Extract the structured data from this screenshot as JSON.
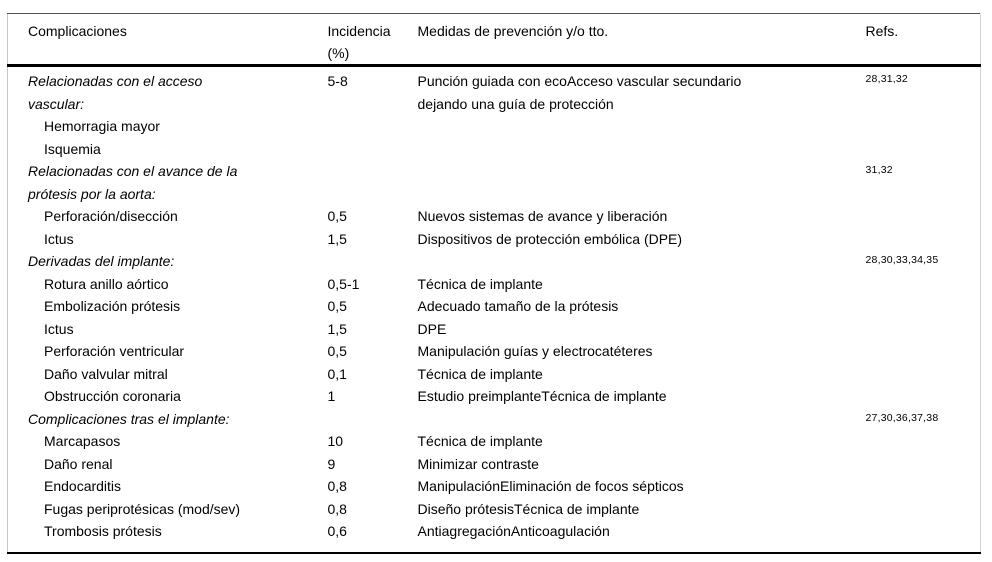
{
  "table": {
    "headers": [
      "Complicaciones",
      "Incidencia\n(%)",
      "Medidas de prevención y/o tto.",
      "Refs."
    ],
    "rows": [
      {
        "complication": "Relacionadas con el acceso\nvascular:",
        "section": true,
        "indent": false,
        "incidence_pct": "5-8",
        "measures": "Punción guiada con ecoAcceso vascular secundario\ndejando una guía de protección",
        "refs": "28,31,32"
      },
      {
        "complication": "Hemorragia mayor",
        "section": false,
        "indent": true,
        "incidence_pct": "",
        "measures": "",
        "refs": ""
      },
      {
        "complication": "Isquemia",
        "section": false,
        "indent": true,
        "incidence_pct": "",
        "measures": "",
        "refs": ""
      },
      {
        "complication": "Relacionadas con el avance de la\nprótesis por la aorta:",
        "section": true,
        "indent": false,
        "incidence_pct": "",
        "measures": "",
        "refs": "31,32"
      },
      {
        "complication": "Perforación/disección",
        "section": false,
        "indent": true,
        "incidence_pct": "0,5",
        "measures": "Nuevos sistemas de avance y liberación",
        "refs": ""
      },
      {
        "complication": "Ictus",
        "section": false,
        "indent": true,
        "incidence_pct": "1,5",
        "measures": "Dispositivos de protección embólica (DPE)",
        "refs": ""
      },
      {
        "complication": "Derivadas del implante:",
        "section": true,
        "indent": false,
        "incidence_pct": "",
        "measures": "",
        "refs": "28,30,33,34,35"
      },
      {
        "complication": "Rotura anillo aórtico",
        "section": false,
        "indent": true,
        "incidence_pct": "0,5-1",
        "measures": "Técnica de implante",
        "refs": ""
      },
      {
        "complication": "Embolización prótesis",
        "section": false,
        "indent": true,
        "incidence_pct": "0,5",
        "measures": "Adecuado tamaño de la prótesis",
        "refs": ""
      },
      {
        "complication": "Ictus",
        "section": false,
        "indent": true,
        "incidence_pct": "1,5",
        "measures": "DPE",
        "refs": ""
      },
      {
        "complication": "Perforación ventricular",
        "section": false,
        "indent": true,
        "incidence_pct": "0,5",
        "measures": "Manipulación guías y electrocatéteres",
        "refs": ""
      },
      {
        "complication": "Daño valvular mitral",
        "section": false,
        "indent": true,
        "incidence_pct": "0,1",
        "measures": "Técnica de implante",
        "refs": ""
      },
      {
        "complication": "Obstrucción coronaria",
        "section": false,
        "indent": true,
        "incidence_pct": "1",
        "measures": "Estudio preimplanteTécnica de implante",
        "refs": ""
      },
      {
        "complication": "Complicaciones tras el implante:",
        "section": true,
        "indent": false,
        "incidence_pct": "",
        "measures": "",
        "refs": "27,30,36,37,38"
      },
      {
        "complication": "Marcapasos",
        "section": false,
        "indent": true,
        "incidence_pct": "10",
        "measures": "Técnica de implante",
        "refs": ""
      },
      {
        "complication": "Daño renal",
        "section": false,
        "indent": true,
        "incidence_pct": "9",
        "measures": "Minimizar contraste",
        "refs": ""
      },
      {
        "complication": "Endocarditis",
        "section": false,
        "indent": true,
        "incidence_pct": "0,8",
        "measures": "ManipulaciónEliminación de focos sépticos",
        "refs": ""
      },
      {
        "complication": "Fugas periprotésicas (mod/sev)",
        "section": false,
        "indent": true,
        "incidence_pct": "0,8",
        "measures": "Diseño prótesisTécnica de implante",
        "refs": ""
      },
      {
        "complication": "Trombosis prótesis",
        "section": false,
        "indent": true,
        "incidence_pct": "0,6",
        "measures": "AntiagregaciónAnticoagulación",
        "refs": ""
      }
    ]
  },
  "colors": {
    "background": "#ffffff",
    "text": "#000000",
    "rule_heavy": "#000000",
    "rule_light": "#c6c6c6"
  }
}
